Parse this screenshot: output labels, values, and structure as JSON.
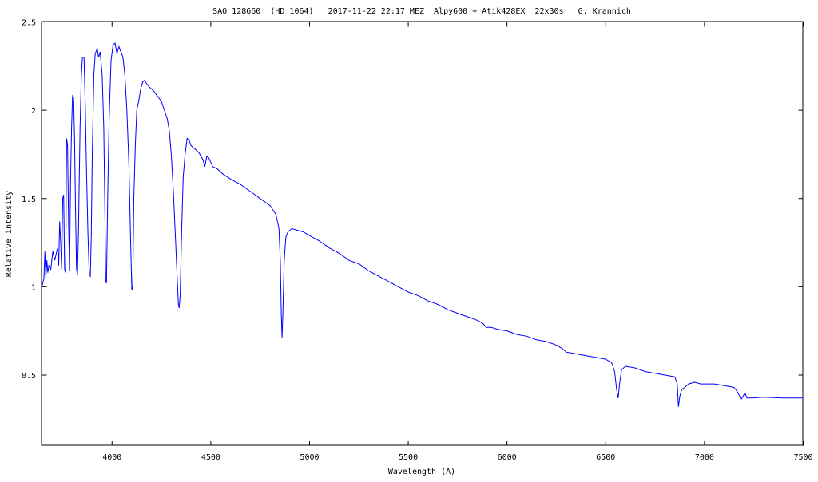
{
  "chart_data": {
    "type": "line",
    "title": "SAO 128660  (HD 1064)   2017-11-22 22:17 MEZ  Alpy600 + Atik428EX  22x30s   G. Krannich",
    "xlabel": "Wavelength (A)",
    "ylabel": "Relative intensity",
    "xlim": [
      3645,
      7500
    ],
    "ylim": [
      0.1,
      2.5
    ],
    "xticks": [
      4000,
      4500,
      5000,
      5500,
      6000,
      6500,
      7000,
      7500
    ],
    "yticks": [
      0.5,
      1,
      1.5,
      2,
      2.5
    ],
    "xtick_labels": [
      "4000",
      "4500",
      "5000",
      "5500",
      "6000",
      "6500",
      "7000",
      "7500"
    ],
    "ytick_labels": [
      "0.5",
      "1",
      "1.5",
      "2",
      "2.5"
    ],
    "grid": false,
    "line_color": "#0000ff",
    "series": [
      {
        "points": [
          [
            3645,
            1.0
          ],
          [
            3655,
            1.05
          ],
          [
            3660,
            1.2
          ],
          [
            3665,
            1.05
          ],
          [
            3670,
            1.15
          ],
          [
            3675,
            1.08
          ],
          [
            3680,
            1.12
          ],
          [
            3690,
            1.1
          ],
          [
            3700,
            1.2
          ],
          [
            3710,
            1.15
          ],
          [
            3720,
            1.2
          ],
          [
            3725,
            1.22
          ],
          [
            3730,
            1.12
          ],
          [
            3735,
            1.37
          ],
          [
            3740,
            1.25
          ],
          [
            3745,
            1.1
          ],
          [
            3750,
            1.5
          ],
          [
            3755,
            1.52
          ],
          [
            3760,
            1.1
          ],
          [
            3765,
            1.08
          ],
          [
            3770,
            1.84
          ],
          [
            3775,
            1.8
          ],
          [
            3780,
            1.35
          ],
          [
            3785,
            1.09
          ],
          [
            3790,
            1.6
          ],
          [
            3795,
            1.9
          ],
          [
            3800,
            2.08
          ],
          [
            3805,
            2.07
          ],
          [
            3810,
            1.85
          ],
          [
            3815,
            1.45
          ],
          [
            3820,
            1.1
          ],
          [
            3825,
            1.07
          ],
          [
            3830,
            1.3
          ],
          [
            3838,
            1.9
          ],
          [
            3845,
            2.2
          ],
          [
            3850,
            2.3
          ],
          [
            3858,
            2.3
          ],
          [
            3865,
            2.0
          ],
          [
            3870,
            1.7
          ],
          [
            3878,
            1.3
          ],
          [
            3885,
            1.07
          ],
          [
            3890,
            1.06
          ],
          [
            3895,
            1.3
          ],
          [
            3900,
            1.75
          ],
          [
            3908,
            2.2
          ],
          [
            3915,
            2.32
          ],
          [
            3925,
            2.35
          ],
          [
            3932,
            2.3
          ],
          [
            3940,
            2.33
          ],
          [
            3950,
            2.2
          ],
          [
            3958,
            1.9
          ],
          [
            3963,
            1.5
          ],
          [
            3968,
            1.03
          ],
          [
            3972,
            1.02
          ],
          [
            3978,
            1.5
          ],
          [
            3985,
            1.95
          ],
          [
            3995,
            2.28
          ],
          [
            4005,
            2.37
          ],
          [
            4015,
            2.38
          ],
          [
            4025,
            2.32
          ],
          [
            4035,
            2.36
          ],
          [
            4045,
            2.33
          ],
          [
            4055,
            2.3
          ],
          [
            4065,
            2.2
          ],
          [
            4075,
            2.0
          ],
          [
            4085,
            1.7
          ],
          [
            4093,
            1.3
          ],
          [
            4100,
            0.98
          ],
          [
            4105,
            1.0
          ],
          [
            4110,
            1.5
          ],
          [
            4118,
            1.8
          ],
          [
            4125,
            2.0
          ],
          [
            4135,
            2.05
          ],
          [
            4145,
            2.12
          ],
          [
            4155,
            2.16
          ],
          [
            4165,
            2.17
          ],
          [
            4175,
            2.15
          ],
          [
            4190,
            2.13
          ],
          [
            4210,
            2.11
          ],
          [
            4230,
            2.08
          ],
          [
            4250,
            2.05
          ],
          [
            4265,
            2.0
          ],
          [
            4280,
            1.95
          ],
          [
            4290,
            1.88
          ],
          [
            4300,
            1.75
          ],
          [
            4310,
            1.55
          ],
          [
            4320,
            1.3
          ],
          [
            4330,
            1.05
          ],
          [
            4336,
            0.9
          ],
          [
            4340,
            0.88
          ],
          [
            4345,
            0.95
          ],
          [
            4352,
            1.3
          ],
          [
            4360,
            1.62
          ],
          [
            4370,
            1.75
          ],
          [
            4380,
            1.84
          ],
          [
            4390,
            1.83
          ],
          [
            4400,
            1.8
          ],
          [
            4420,
            1.78
          ],
          [
            4440,
            1.76
          ],
          [
            4460,
            1.72
          ],
          [
            4470,
            1.68
          ],
          [
            4480,
            1.74
          ],
          [
            4490,
            1.73
          ],
          [
            4510,
            1.68
          ],
          [
            4530,
            1.67
          ],
          [
            4560,
            1.64
          ],
          [
            4600,
            1.61
          ],
          [
            4650,
            1.58
          ],
          [
            4700,
            1.54
          ],
          [
            4750,
            1.5
          ],
          [
            4800,
            1.46
          ],
          [
            4830,
            1.41
          ],
          [
            4845,
            1.33
          ],
          [
            4852,
            1.15
          ],
          [
            4857,
            0.85
          ],
          [
            4861,
            0.71
          ],
          [
            4865,
            0.85
          ],
          [
            4872,
            1.15
          ],
          [
            4880,
            1.28
          ],
          [
            4890,
            1.31
          ],
          [
            4910,
            1.33
          ],
          [
            4940,
            1.32
          ],
          [
            4970,
            1.31
          ],
          [
            5000,
            1.29
          ],
          [
            5050,
            1.26
          ],
          [
            5100,
            1.22
          ],
          [
            5150,
            1.19
          ],
          [
            5200,
            1.15
          ],
          [
            5250,
            1.13
          ],
          [
            5300,
            1.09
          ],
          [
            5350,
            1.06
          ],
          [
            5400,
            1.03
          ],
          [
            5450,
            1.0
          ],
          [
            5500,
            0.97
          ],
          [
            5550,
            0.95
          ],
          [
            5600,
            0.92
          ],
          [
            5650,
            0.9
          ],
          [
            5700,
            0.87
          ],
          [
            5750,
            0.85
          ],
          [
            5800,
            0.83
          ],
          [
            5850,
            0.81
          ],
          [
            5880,
            0.79
          ],
          [
            5895,
            0.77
          ],
          [
            5920,
            0.77
          ],
          [
            5950,
            0.76
          ],
          [
            6000,
            0.75
          ],
          [
            6050,
            0.73
          ],
          [
            6100,
            0.72
          ],
          [
            6150,
            0.7
          ],
          [
            6200,
            0.69
          ],
          [
            6250,
            0.67
          ],
          [
            6280,
            0.65
          ],
          [
            6300,
            0.63
          ],
          [
            6350,
            0.62
          ],
          [
            6400,
            0.61
          ],
          [
            6450,
            0.6
          ],
          [
            6500,
            0.59
          ],
          [
            6530,
            0.57
          ],
          [
            6545,
            0.52
          ],
          [
            6555,
            0.42
          ],
          [
            6563,
            0.37
          ],
          [
            6570,
            0.45
          ],
          [
            6580,
            0.53
          ],
          [
            6600,
            0.55
          ],
          [
            6650,
            0.54
          ],
          [
            6700,
            0.52
          ],
          [
            6750,
            0.51
          ],
          [
            6800,
            0.5
          ],
          [
            6850,
            0.49
          ],
          [
            6862,
            0.45
          ],
          [
            6868,
            0.32
          ],
          [
            6875,
            0.38
          ],
          [
            6885,
            0.42
          ],
          [
            6900,
            0.43
          ],
          [
            6920,
            0.45
          ],
          [
            6950,
            0.46
          ],
          [
            6980,
            0.45
          ],
          [
            7050,
            0.45
          ],
          [
            7100,
            0.44
          ],
          [
            7150,
            0.43
          ],
          [
            7170,
            0.4
          ],
          [
            7185,
            0.36
          ],
          [
            7195,
            0.38
          ],
          [
            7205,
            0.4
          ],
          [
            7215,
            0.37
          ],
          [
            7240,
            0.37
          ],
          [
            7300,
            0.375
          ],
          [
            7400,
            0.37
          ],
          [
            7500,
            0.37
          ]
        ]
      }
    ]
  }
}
